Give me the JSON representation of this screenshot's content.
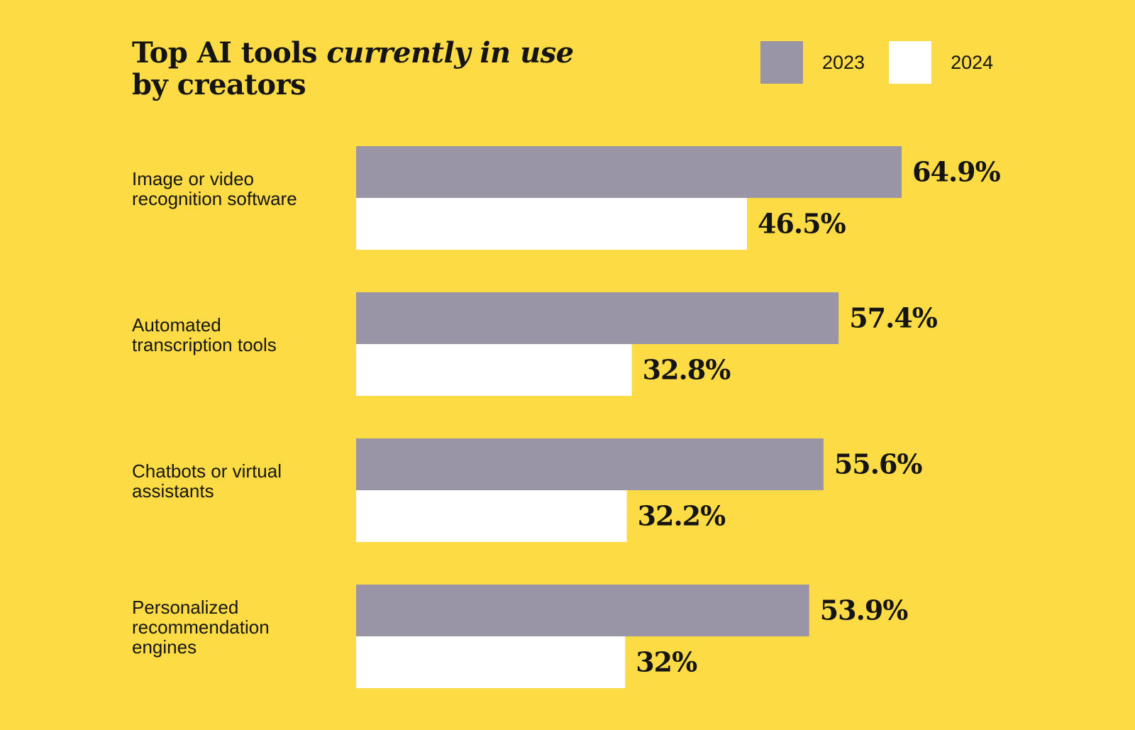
{
  "title": {
    "line1_plain": "Top AI tools ",
    "line1_italic": "currently in use",
    "line2": "by creators"
  },
  "colors": {
    "background": "#FDDB45",
    "series_2023": "#9A95A6",
    "series_2024": "#FFFFFF"
  },
  "legend": {
    "placement": "top-right",
    "items": [
      {
        "label": "2023",
        "color": "#9A95A6"
      },
      {
        "label": "2024",
        "color": "#FFFFFF"
      }
    ]
  },
  "chart_data": {
    "type": "bar",
    "orientation": "horizontal",
    "title": "Top AI tools currently in use by creators",
    "categories": [
      [
        "Image or video",
        "recognition software"
      ],
      [
        "Automated",
        "transcription tools"
      ],
      [
        "Chatbots or virtual",
        "assistants"
      ],
      [
        "Personalized",
        "recommendation",
        "engines"
      ]
    ],
    "series": [
      {
        "name": "2023",
        "color": "#9A95A6",
        "values": [
          64.9,
          57.4,
          55.6,
          53.9
        ],
        "labels": [
          "64.9%",
          "57.4%",
          "55.6%",
          "53.9%"
        ]
      },
      {
        "name": "2024",
        "color": "#FFFFFF",
        "values": [
          46.5,
          32.8,
          32.2,
          32
        ],
        "labels": [
          "46.5%",
          "32.8%",
          "32.2%",
          "32%"
        ]
      }
    ],
    "xlim": [
      0,
      100
    ],
    "grid": false,
    "axes_visible": false
  }
}
